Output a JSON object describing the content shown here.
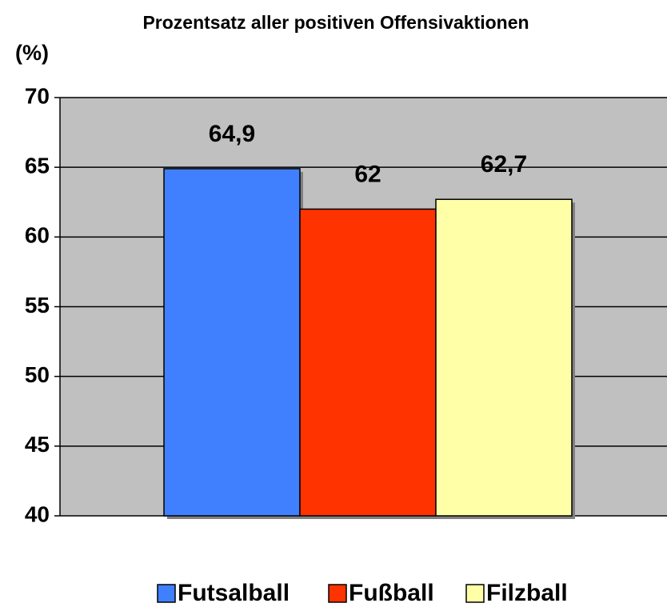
{
  "chart_data": {
    "type": "bar",
    "title": "Prozentsatz aller positiven Offensivaktionen",
    "y_label": "(%)",
    "categories": [
      null
    ],
    "series": [
      {
        "name": "Futsalball",
        "color": "#4080ff",
        "values": [
          64.9
        ],
        "value_labels": [
          "64,9"
        ]
      },
      {
        "name": "Fußball",
        "color": "#ff3300",
        "values": [
          62
        ],
        "value_labels": [
          "62"
        ]
      },
      {
        "name": "Filzball",
        "color": "#ffffa8",
        "values": [
          62.7
        ],
        "value_labels": [
          "62,7"
        ]
      }
    ],
    "ylim": [
      40,
      70
    ],
    "yticks": [
      40,
      45,
      50,
      55,
      60,
      65,
      70
    ],
    "grid": true,
    "plot_background": "#c0c0c0",
    "legend": "bottom"
  }
}
